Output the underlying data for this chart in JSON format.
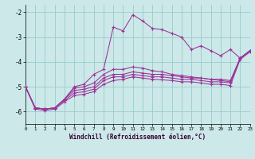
{
  "xlabel": "Windchill (Refroidissement éolien,°C)",
  "bg_color": "#cce8e8",
  "grid_color": "#99cccc",
  "line_color": "#993399",
  "xlim": [
    0,
    23
  ],
  "ylim": [
    -6.5,
    -1.7
  ],
  "yticks": [
    -6,
    -5,
    -4,
    -3,
    -2
  ],
  "xticks": [
    0,
    1,
    2,
    3,
    4,
    5,
    6,
    7,
    8,
    9,
    10,
    11,
    12,
    13,
    14,
    15,
    16,
    17,
    18,
    19,
    20,
    21,
    22,
    23
  ],
  "lines": [
    [
      -5.0,
      -5.85,
      -5.9,
      -5.85,
      -5.5,
      -5.0,
      -4.9,
      -4.5,
      -4.3,
      -2.6,
      -2.75,
      -2.1,
      -2.35,
      -2.65,
      -2.7,
      -2.85,
      -3.0,
      -3.5,
      -3.35,
      -3.55,
      -3.75,
      -3.5,
      -3.85,
      -3.55
    ],
    [
      -5.0,
      -5.85,
      -5.9,
      -5.85,
      -5.5,
      -5.05,
      -5.0,
      -4.85,
      -4.5,
      -4.3,
      -4.3,
      -4.2,
      -4.25,
      -4.35,
      -4.4,
      -4.5,
      -4.55,
      -4.6,
      -4.65,
      -4.7,
      -4.7,
      -4.75,
      -3.85,
      -3.55
    ],
    [
      -5.0,
      -5.85,
      -5.9,
      -5.85,
      -5.5,
      -5.15,
      -5.1,
      -5.0,
      -4.65,
      -4.5,
      -4.5,
      -4.4,
      -4.45,
      -4.5,
      -4.5,
      -4.55,
      -4.6,
      -4.65,
      -4.65,
      -4.7,
      -4.75,
      -4.8,
      -3.85,
      -3.55
    ],
    [
      -5.0,
      -5.85,
      -5.9,
      -5.85,
      -5.55,
      -5.25,
      -5.2,
      -5.1,
      -4.75,
      -4.6,
      -4.6,
      -4.5,
      -4.55,
      -4.6,
      -4.6,
      -4.65,
      -4.7,
      -4.7,
      -4.75,
      -4.8,
      -4.8,
      -4.85,
      -3.85,
      -3.55
    ],
    [
      -5.0,
      -5.9,
      -5.95,
      -5.9,
      -5.6,
      -5.35,
      -5.3,
      -5.2,
      -4.9,
      -4.75,
      -4.7,
      -4.6,
      -4.65,
      -4.7,
      -4.72,
      -4.75,
      -4.8,
      -4.8,
      -4.85,
      -4.9,
      -4.9,
      -4.95,
      -3.9,
      -3.6
    ]
  ]
}
